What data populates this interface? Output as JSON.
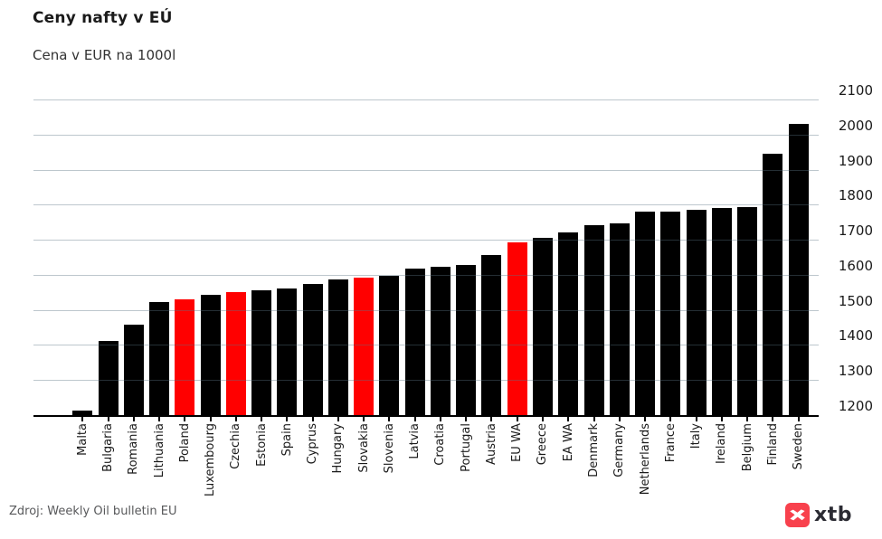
{
  "header": {
    "title": "Ceny nafty v EÚ",
    "subtitle": "Cena v EUR na 1000l"
  },
  "footer": {
    "source": "Zdroj: Weekly Oil bulletin EU",
    "logo_text": "xtb"
  },
  "colors": {
    "bar": "#000000",
    "highlight": "#ff0000",
    "gridline": "#ccd6dd",
    "axis": "#000000",
    "logo_red": "#f8414d",
    "logo_text": "#2b2b33"
  },
  "chart_data": {
    "type": "bar",
    "title": "Ceny nafty v EÚ",
    "subtitle": "Cena v EUR na 1000l",
    "xlabel": "",
    "ylabel": "EUR na 1000l",
    "categories": [
      "Malta",
      "Bulgaria",
      "Romania",
      "Lithuania",
      "Poland",
      "Luxembourg",
      "Czechia",
      "Estonia",
      "Spain",
      "Cyprus",
      "Hungary",
      "Slovakia",
      "Slovenia",
      "Latvia",
      "Croatia",
      "Portugal",
      "Austria",
      "EU WA",
      "Greece",
      "EA WA",
      "Denmark",
      "Germany",
      "Netherlands",
      "France",
      "Italy",
      "Ireland",
      "Belgium",
      "Finland",
      "Sweden"
    ],
    "values": [
      1212,
      1411,
      1457,
      1522,
      1530,
      1544,
      1551,
      1556,
      1561,
      1575,
      1588,
      1592,
      1598,
      1618,
      1622,
      1627,
      1656,
      1692,
      1706,
      1721,
      1742,
      1746,
      1781,
      1781,
      1785,
      1790,
      1794,
      1946,
      2031
    ],
    "highlighted_categories": [
      "Poland",
      "Czechia",
      "Slovakia",
      "EU WA"
    ],
    "ylim": [
      1200,
      2100
    ],
    "yticks": [
      1200,
      1300,
      1400,
      1500,
      1600,
      1700,
      1800,
      1900,
      2000,
      2100
    ],
    "grid": "horizontal",
    "legend": "none",
    "y_axis_side": "right",
    "x_label_rotation": 90
  }
}
